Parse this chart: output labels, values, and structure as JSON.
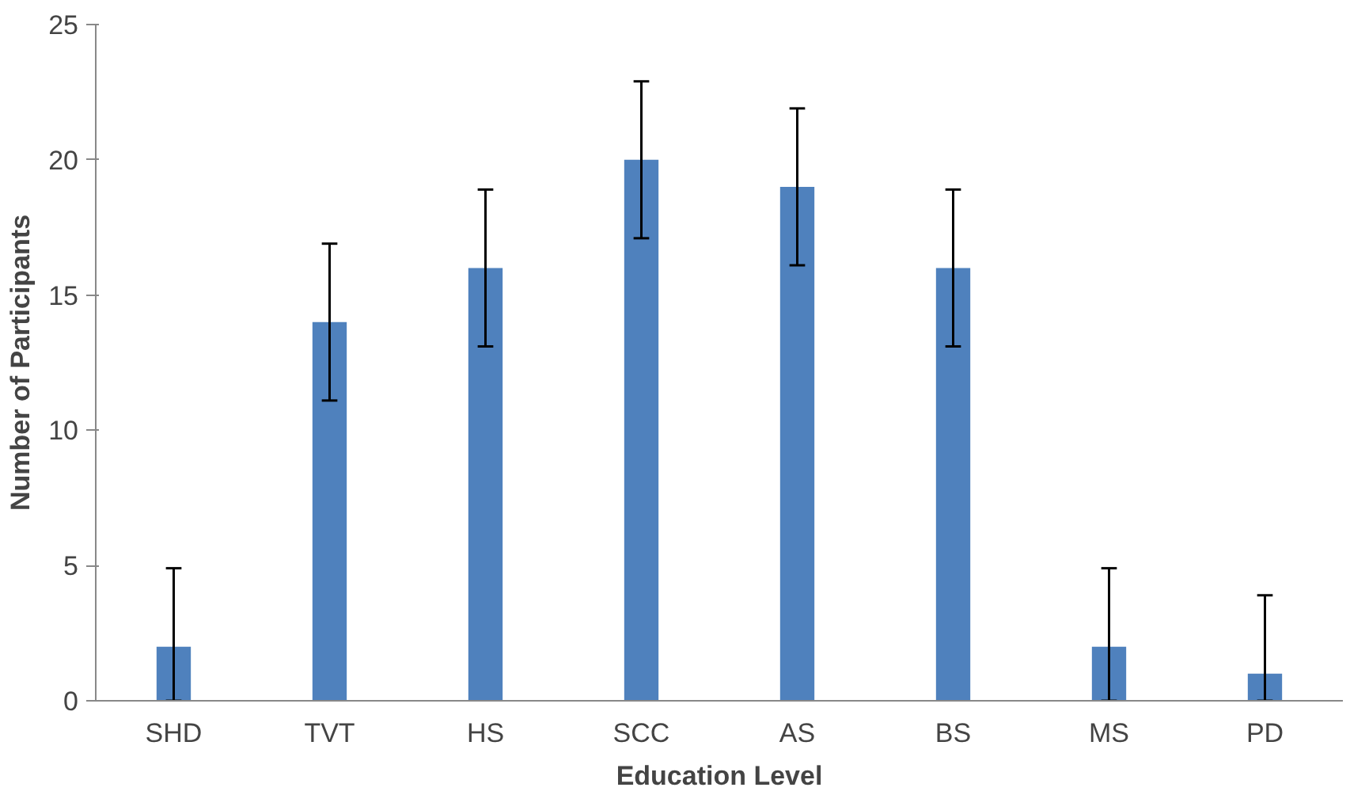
{
  "chart_data": {
    "type": "bar",
    "xlabel": "Education Level",
    "ylabel": "Number of Participants",
    "categories": [
      "SHD",
      "TVT",
      "HS",
      "SCC",
      "AS",
      "BS",
      "MS",
      "PD"
    ],
    "values": [
      2,
      14,
      16,
      20,
      19,
      16,
      2,
      1
    ],
    "errors": [
      [
        0,
        4.9
      ],
      2.9,
      2.9,
      2.9,
      2.9,
      2.9,
      [
        0,
        4.9
      ],
      [
        0,
        3.9
      ]
    ],
    "color": "#4f81bd",
    "ylim": [
      0,
      25
    ],
    "yticks": [
      0,
      5,
      10,
      15,
      20,
      25
    ],
    "grid": false
  }
}
